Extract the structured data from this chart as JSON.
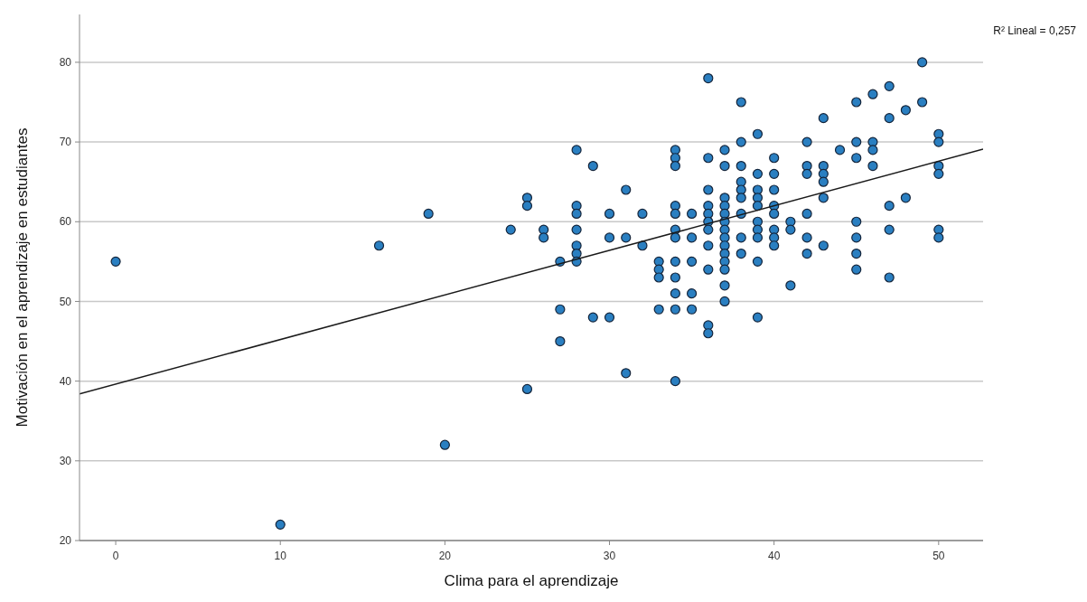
{
  "chart_data": {
    "type": "scatter",
    "xlabel": "Clima para el aprendizaje",
    "ylabel": "Motivación en el aprendizaje en estudiantes",
    "annotations": [
      "R² Lineal = 0,257"
    ],
    "xlim": [
      -2.2,
      52.7
    ],
    "xticks": [
      0,
      10,
      20,
      30,
      40,
      50
    ],
    "ylim": [
      20,
      86
    ],
    "yticks": [
      20,
      30,
      40,
      50,
      60,
      70,
      80
    ],
    "grid": "y",
    "series": [
      {
        "marker": "circle",
        "color": "#2a7fc1",
        "x": [
          0,
          10,
          16,
          19,
          20,
          24,
          25,
          25,
          25,
          26,
          26,
          27,
          27,
          27,
          28,
          28,
          28,
          28,
          28,
          28,
          28,
          29,
          29,
          30,
          30,
          30,
          31,
          31,
          31,
          32,
          32,
          33,
          33,
          33,
          33,
          34,
          34,
          34,
          34,
          34,
          34,
          34,
          34,
          34,
          34,
          34,
          34,
          35,
          35,
          35,
          35,
          35,
          36,
          36,
          36,
          36,
          36,
          36,
          36,
          36,
          36,
          36,
          36,
          37,
          37,
          37,
          37,
          37,
          37,
          37,
          37,
          37,
          37,
          37,
          37,
          37,
          37,
          38,
          38,
          38,
          38,
          38,
          38,
          38,
          38,
          38,
          39,
          39,
          39,
          39,
          39,
          39,
          39,
          39,
          39,
          39,
          40,
          40,
          40,
          40,
          40,
          40,
          40,
          40,
          41,
          41,
          41,
          42,
          42,
          42,
          42,
          42,
          42,
          43,
          43,
          43,
          43,
          43,
          43,
          44,
          45,
          45,
          45,
          45,
          45,
          45,
          45,
          46,
          46,
          46,
          46,
          47,
          47,
          47,
          47,
          47,
          48,
          48,
          49,
          49,
          50,
          50,
          50,
          50,
          50,
          50
        ],
        "values": [
          55,
          22,
          57,
          61,
          32,
          59,
          63,
          62,
          39,
          59,
          58,
          55,
          49,
          45,
          69,
          62,
          61,
          59,
          57,
          56,
          55,
          67,
          48,
          61,
          58,
          48,
          64,
          58,
          41,
          61,
          57,
          55,
          54,
          53,
          49,
          69,
          68,
          67,
          62,
          61,
          59,
          58,
          55,
          53,
          51,
          49,
          40,
          61,
          58,
          55,
          51,
          49,
          78,
          68,
          64,
          62,
          61,
          60,
          59,
          57,
          54,
          47,
          46,
          69,
          67,
          63,
          62,
          61,
          60,
          59,
          58,
          57,
          56,
          55,
          54,
          52,
          50,
          75,
          70,
          67,
          65,
          64,
          63,
          61,
          58,
          56,
          71,
          66,
          64,
          63,
          62,
          60,
          59,
          58,
          55,
          48,
          68,
          66,
          64,
          62,
          61,
          59,
          58,
          57,
          60,
          59,
          52,
          70,
          67,
          66,
          61,
          58,
          56,
          73,
          67,
          66,
          65,
          63,
          57,
          69,
          75,
          70,
          68,
          60,
          58,
          56,
          54,
          76,
          70,
          69,
          67,
          77,
          73,
          62,
          59,
          53,
          74,
          63,
          80,
          75,
          71,
          70,
          67,
          66,
          59,
          58
        ]
      },
      {
        "type": "line",
        "color": "#1a1a1a",
        "x": [
          -2.2,
          52.7
        ],
        "values": [
          38.4,
          69.1
        ]
      }
    ]
  }
}
